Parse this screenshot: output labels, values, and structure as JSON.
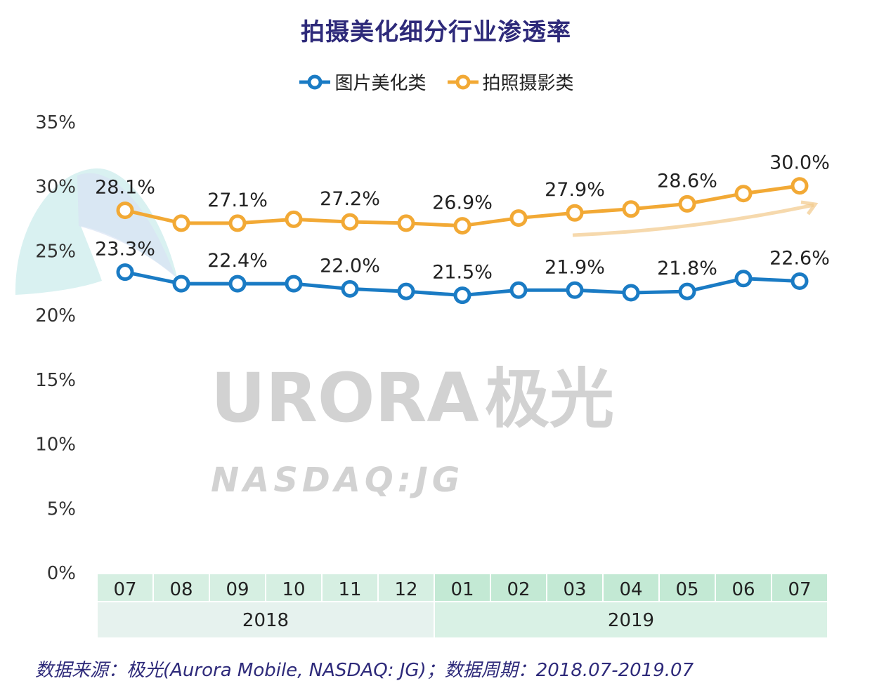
{
  "chart_data": {
    "type": "line",
    "title": "拍摄美化细分行业渗透率",
    "xlabel": "",
    "ylabel": "",
    "ylim": [
      0,
      35
    ],
    "yticks": [
      "0%",
      "5%",
      "10%",
      "15%",
      "20%",
      "25%",
      "30%",
      "35%"
    ],
    "ytick_values": [
      0,
      5,
      10,
      15,
      20,
      25,
      30,
      35
    ],
    "categories": [
      "07",
      "08",
      "09",
      "10",
      "11",
      "12",
      "01",
      "02",
      "03",
      "04",
      "05",
      "06",
      "07"
    ],
    "year_groups": [
      {
        "label": "2018",
        "count": 6
      },
      {
        "label": "2019",
        "count": 7
      }
    ],
    "grid": false,
    "legend_position": "top-center",
    "series": [
      {
        "name": "图片美化类",
        "color": "#1a7bc4",
        "values": [
          23.3,
          22.4,
          22.4,
          22.4,
          22.0,
          21.8,
          21.5,
          21.9,
          21.9,
          21.7,
          21.8,
          22.8,
          22.6
        ],
        "labels": [
          "23.3%",
          null,
          "22.4%",
          null,
          "22.0%",
          null,
          "21.5%",
          null,
          "21.9%",
          null,
          "21.8%",
          null,
          "22.6%"
        ]
      },
      {
        "name": "拍照摄影类",
        "color": "#f2a935",
        "values": [
          28.1,
          27.1,
          27.1,
          27.4,
          27.2,
          27.1,
          26.9,
          27.5,
          27.9,
          28.2,
          28.6,
          29.4,
          30.0
        ],
        "labels": [
          "28.1%",
          null,
          "27.1%",
          null,
          "27.2%",
          null,
          "26.9%",
          null,
          "27.9%",
          null,
          "28.6%",
          null,
          "30.0%"
        ]
      }
    ],
    "watermark": {
      "main": "URORA",
      "cn": "极光",
      "sub": "NASDAQ:JG"
    }
  },
  "legend": {
    "items": [
      {
        "label": "图片美化类",
        "color": "#1a7bc4"
      },
      {
        "label": "拍照摄影类",
        "color": "#f2a935"
      }
    ]
  },
  "footer": {
    "text": "数据来源：极光(Aurora Mobile, NASDAQ: JG)；数据周期：2018.07-2019.07"
  },
  "colors": {
    "title": "#2e2a7a",
    "month_cell_2018": "#d6efe2",
    "month_cell_2019": "#c3e9d4",
    "year_cell_2018": "#e6f2ee",
    "year_cell_2019": "#d9f1e5"
  }
}
